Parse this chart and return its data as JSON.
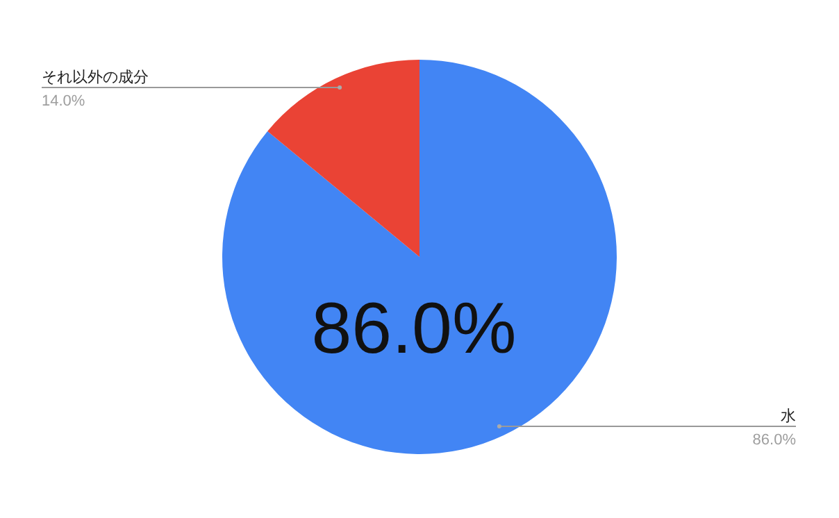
{
  "chart_data": {
    "type": "pie",
    "categories": [
      "水",
      "それ以外の成分"
    ],
    "values": [
      86,
      14
    ],
    "colors": [
      "#4285f4",
      "#ea4335"
    ],
    "value_labels": [
      "86.0%",
      "14.0%"
    ],
    "annotations": [
      "86.0%"
    ]
  }
}
